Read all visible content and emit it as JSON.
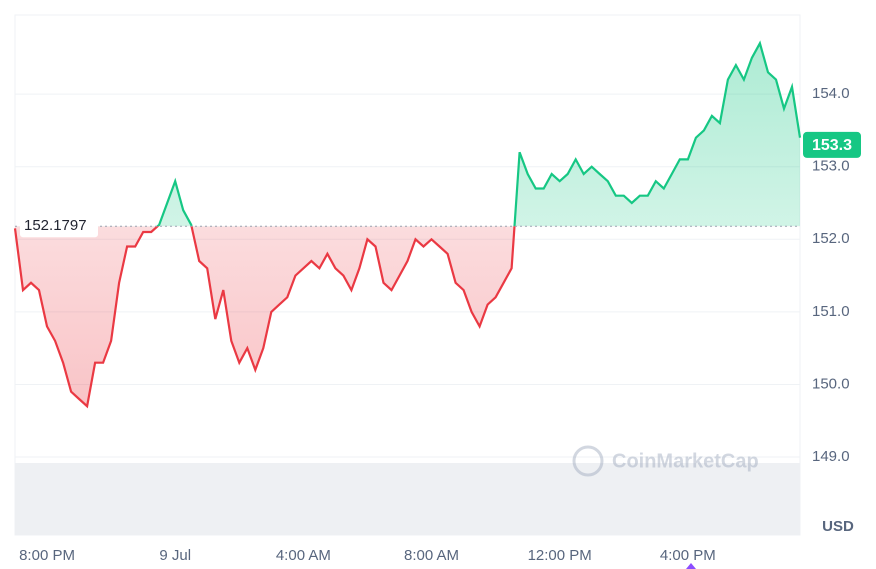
{
  "chart_data": {
    "type": "line",
    "x": [
      19,
      19.25,
      19.5,
      19.75,
      20,
      20.25,
      20.5,
      20.75,
      21,
      21.25,
      21.5,
      21.75,
      22,
      22.25,
      22.5,
      22.75,
      23,
      23.25,
      23.5,
      23.75,
      24,
      24.25,
      24.5,
      24.75,
      25,
      25.25,
      25.5,
      25.75,
      26,
      26.25,
      26.5,
      26.75,
      27,
      27.25,
      27.5,
      27.75,
      28,
      28.25,
      28.5,
      28.75,
      29,
      29.25,
      29.5,
      29.75,
      30,
      30.25,
      30.5,
      30.75,
      31,
      31.25,
      31.5,
      31.75,
      32,
      32.25,
      32.5,
      32.75,
      33,
      33.25,
      33.5,
      33.75,
      34,
      34.25,
      34.5,
      34.75,
      35,
      35.25,
      35.5,
      35.75,
      36,
      36.25,
      36.5,
      36.75,
      37,
      37.25,
      37.5,
      37.75,
      38,
      38.25,
      38.5,
      38.75,
      39,
      39.25,
      39.5,
      39.75,
      40,
      40.25,
      40.5,
      40.75,
      41,
      41.25,
      41.5,
      41.75,
      42,
      42.25,
      42.5,
      42.75,
      43,
      43.25,
      43.5
    ],
    "series": [
      {
        "name": "USD",
        "color": "#ea3943",
        "color_up": "#16c784",
        "values": [
          152.15,
          151.3,
          151.4,
          151.3,
          150.8,
          150.6,
          150.3,
          149.9,
          149.8,
          149.7,
          150.3,
          150.3,
          150.6,
          151.4,
          151.9,
          151.9,
          152.1,
          152.1,
          152.2,
          152.5,
          152.8,
          152.4,
          152.2,
          151.7,
          151.6,
          150.9,
          151.3,
          150.6,
          150.3,
          150.5,
          150.2,
          150.5,
          151.0,
          151.1,
          151.2,
          151.5,
          151.6,
          151.7,
          151.6,
          151.8,
          151.6,
          151.5,
          151.3,
          151.6,
          152.0,
          151.9,
          151.4,
          151.3,
          151.5,
          151.7,
          152.0,
          151.9,
          152.0,
          151.9,
          151.8,
          151.4,
          151.3,
          151.0,
          150.8,
          151.1,
          151.2,
          151.4,
          151.6,
          153.2,
          152.9,
          152.7,
          152.7,
          152.9,
          152.8,
          152.9,
          153.1,
          152.9,
          153.0,
          152.9,
          152.8,
          152.6,
          152.6,
          152.5,
          152.6,
          152.6,
          152.8,
          152.7,
          152.9,
          153.1,
          153.1,
          153.4,
          153.5,
          153.7,
          153.6,
          154.2,
          154.4,
          154.2,
          154.5,
          154.7,
          154.3,
          154.2,
          153.8,
          154.1,
          153.4
        ]
      }
    ],
    "baseline": 152.1797,
    "current_price": 153.3,
    "ylim": [
      148.0,
      155.09
    ],
    "yticks": [
      {
        "value": 149,
        "label": "149.0"
      },
      {
        "value": 150,
        "label": "150.0"
      },
      {
        "value": 151,
        "label": "151.0"
      },
      {
        "value": 152,
        "label": "152.0"
      },
      {
        "value": 153,
        "label": "153.0"
      },
      {
        "value": 154,
        "label": "154.0"
      }
    ],
    "xlim": [
      19,
      43.5
    ],
    "xticks": [
      {
        "value": 20,
        "label": "8:00 PM"
      },
      {
        "value": 24,
        "label": "9 Jul"
      },
      {
        "value": 28,
        "label": "4:00 AM"
      },
      {
        "value": 32,
        "label": "8:00 AM"
      },
      {
        "value": 36,
        "label": "12:00 PM"
      },
      {
        "value": 40,
        "label": "4:00 PM"
      }
    ],
    "unit_label": "USD",
    "watermark": "CoinMarketCap",
    "grid": true
  }
}
